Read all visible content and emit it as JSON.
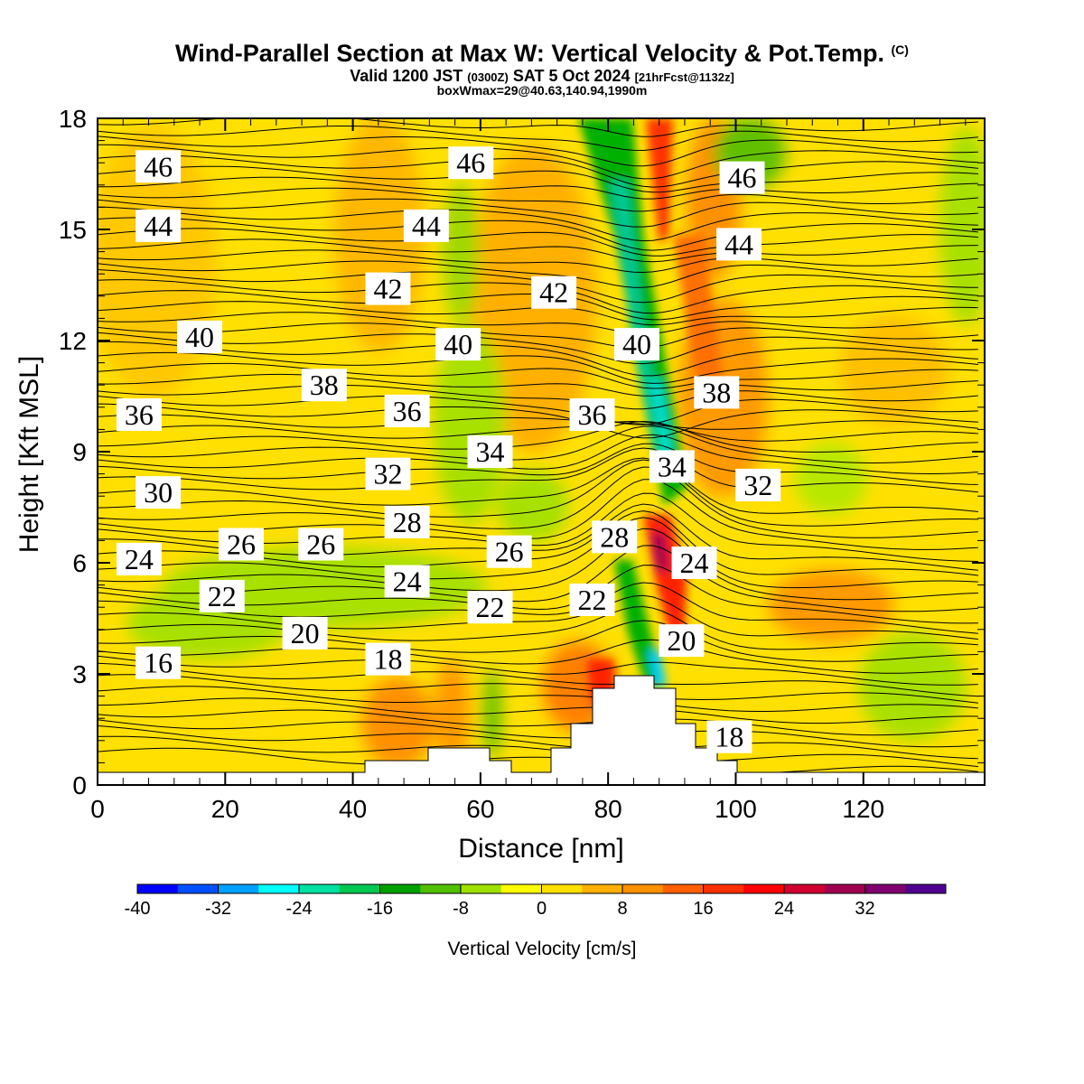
{
  "title": {
    "main": "Wind-Parallel Section at Max W: Vertical Velocity & Pot.Temp.",
    "copyright": "(C)",
    "valid_prefix": "Valid 1200 JST",
    "valid_utc": "(0300Z)",
    "valid_date": "SAT 5 Oct 2024",
    "forecast_info": "[21hrFcst@1132z]",
    "box_info": "boxWmax=29@40.63,140.94,1990m"
  },
  "colorbar": {
    "title": "Vertical Velocity [cm/s]",
    "tick_labels": [
      "-40",
      "-32",
      "-24",
      "-16",
      "-8",
      "0",
      "8",
      "16",
      "24",
      "32"
    ],
    "colors": [
      "#0000ff",
      "#0050ff",
      "#00a0ff",
      "#00ffff",
      "#00e0a0",
      "#00c850",
      "#00a000",
      "#50c000",
      "#a0e000",
      "#ffff00",
      "#ffe000",
      "#ffb000",
      "#ff9000",
      "#ff6000",
      "#ff3000",
      "#ff0000",
      "#d00030",
      "#a00050",
      "#800070",
      "#500090"
    ]
  },
  "chart_data": {
    "type": "heatmap",
    "title": "Wind-Parallel Section at Max W: Vertical Velocity & Pot.Temp.",
    "xlabel": "Distance [nm]",
    "ylabel": "Height [Kft MSL]",
    "xlim": [
      0,
      139
    ],
    "ylim": [
      0,
      18
    ],
    "x_ticks": [
      "0",
      "20",
      "40",
      "60",
      "80",
      "100",
      "120"
    ],
    "y_ticks": [
      "0",
      "3",
      "6",
      "9",
      "12",
      "15",
      "18"
    ],
    "fill_variable": "Vertical Velocity [cm/s]",
    "contour_variable": "Potential Temperature",
    "contour_labels": [
      {
        "text": "46",
        "x": 9.5,
        "y": 16.7
      },
      {
        "text": "46",
        "x": 58.5,
        "y": 16.8
      },
      {
        "text": "46",
        "x": 101,
        "y": 16.4
      },
      {
        "text": "44",
        "x": 9.5,
        "y": 15.1
      },
      {
        "text": "44",
        "x": 51.5,
        "y": 15.1
      },
      {
        "text": "44",
        "x": 100.5,
        "y": 14.6
      },
      {
        "text": "42",
        "x": 45.5,
        "y": 13.4
      },
      {
        "text": "42",
        "x": 71.5,
        "y": 13.3
      },
      {
        "text": "40",
        "x": 16,
        "y": 12.1
      },
      {
        "text": "40",
        "x": 56.5,
        "y": 11.9
      },
      {
        "text": "40",
        "x": 84.5,
        "y": 11.9
      },
      {
        "text": "38",
        "x": 35.5,
        "y": 10.8
      },
      {
        "text": "38",
        "x": 97,
        "y": 10.6
      },
      {
        "text": "36",
        "x": 6.5,
        "y": 10.0
      },
      {
        "text": "36",
        "x": 48.5,
        "y": 10.1
      },
      {
        "text": "36",
        "x": 77.5,
        "y": 10.0
      },
      {
        "text": "34",
        "x": 61.5,
        "y": 9.0
      },
      {
        "text": "34",
        "x": 90,
        "y": 8.6
      },
      {
        "text": "32",
        "x": 45.5,
        "y": 8.4
      },
      {
        "text": "32",
        "x": 103.5,
        "y": 8.1
      },
      {
        "text": "30",
        "x": 9.5,
        "y": 7.9
      },
      {
        "text": "28",
        "x": 48.5,
        "y": 7.1
      },
      {
        "text": "28",
        "x": 81,
        "y": 6.7
      },
      {
        "text": "26",
        "x": 22.5,
        "y": 6.5
      },
      {
        "text": "26",
        "x": 35,
        "y": 6.5
      },
      {
        "text": "26",
        "x": 64.5,
        "y": 6.3
      },
      {
        "text": "24",
        "x": 6.5,
        "y": 6.1
      },
      {
        "text": "24",
        "x": 48.5,
        "y": 5.5
      },
      {
        "text": "24",
        "x": 93.5,
        "y": 6.0
      },
      {
        "text": "22",
        "x": 19.5,
        "y": 5.1
      },
      {
        "text": "22",
        "x": 61.5,
        "y": 4.8
      },
      {
        "text": "22",
        "x": 77.5,
        "y": 5.0
      },
      {
        "text": "20",
        "x": 32.5,
        "y": 4.1
      },
      {
        "text": "20",
        "x": 91.5,
        "y": 3.9
      },
      {
        "text": "18",
        "x": 45.5,
        "y": 3.4
      },
      {
        "text": "18",
        "x": 99,
        "y": 1.3
      },
      {
        "text": "16",
        "x": 9.5,
        "y": 3.3
      }
    ]
  }
}
